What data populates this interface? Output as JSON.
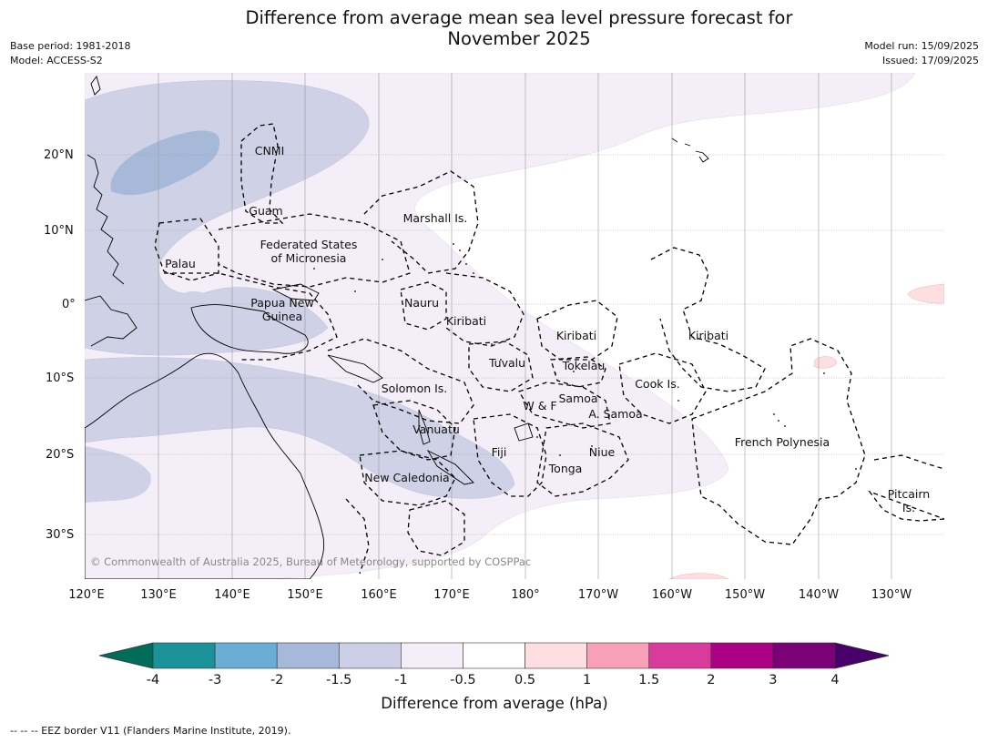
{
  "header": {
    "title_line1": "Difference from average mean sea level pressure forecast for",
    "title_line2": "November 2025",
    "base_period": "Base period: 1981-2018",
    "model": "Model: ACCESS-S2",
    "model_run": "Model run: 15/09/2025",
    "issued": "Issued: 17/09/2025"
  },
  "map": {
    "lat_ticks": [
      "20°N",
      "10°N",
      "0°",
      "10°S",
      "20°S",
      "30°S"
    ],
    "lon_ticks": [
      "120°E",
      "130°E",
      "140°E",
      "150°E",
      "160°E",
      "170°E",
      "180°",
      "170°W",
      "160°W",
      "150°W",
      "140°W",
      "130°W"
    ],
    "places": {
      "cnmi": "CNMI",
      "guam": "Guam",
      "marshall": "Marshall Is.",
      "fsm_1": "Federated States",
      "fsm_2": "of Micronesia",
      "palau": "Palau",
      "png_1": "Papua New",
      "png_2": "Guinea",
      "nauru": "Nauru",
      "kiribati_w": "Kiribati",
      "kiribati_c": "Kiribati",
      "kiribati_e": "Kiribati",
      "tuvalu": "Tuvalu",
      "tokelau": "Tokelau",
      "cook": "Cook Is.",
      "solomon": "Solomon Is.",
      "wf": "W & F",
      "samoa": "Samoa",
      "asamoa": "A. Samoa",
      "vanuatu": "Vanuatu",
      "fiji": "Fiji",
      "niue": "Niue",
      "tonga": "Tonga",
      "french_polynesia": "French Polynesia",
      "new_caledonia": "New Caledonia",
      "pitcairn_1": "Pitcairn",
      "pitcairn_2": "Is."
    },
    "copyright": "© Commonwealth of Australia 2025, Bureau of Meteorology, supported by COSPPac"
  },
  "colorbar": {
    "labels": [
      "-4",
      "-3",
      "-2",
      "-1.5",
      "-1",
      "-0.5",
      "0.5",
      "1",
      "1.5",
      "2",
      "3",
      "4"
    ],
    "colors": [
      "#1b9199",
      "#6aadd5",
      "#a6b9d8",
      "#cdcfe6",
      "#f3eef7",
      "#ffffff",
      "#fddfe1",
      "#f8a0b8",
      "#d93b9d",
      "#ab0285",
      "#7a0177"
    ],
    "low_extend_color": "#016c59",
    "high_extend_color": "#49006a",
    "title": "Difference from average (hPa)"
  },
  "footnote": "--  --  -- EEZ border V11 (Flanders Marine Institute, 2019)."
}
